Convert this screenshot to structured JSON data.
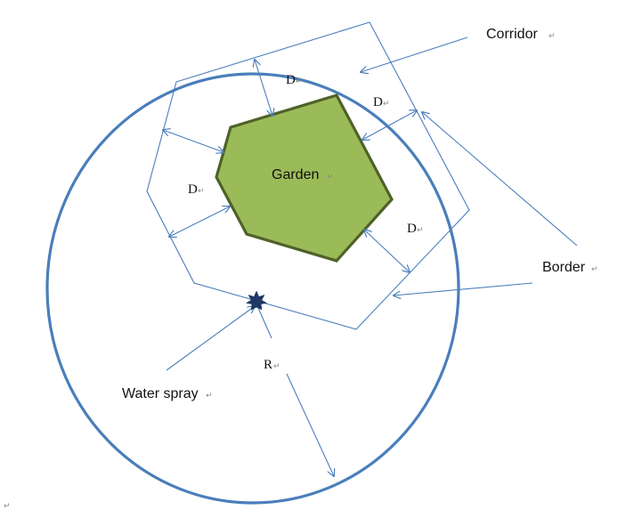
{
  "labels": {
    "corridor": "Corridor",
    "garden": "Garden",
    "border": "Border",
    "water_spray": "Water spray",
    "radius": "R",
    "distance_top": "D",
    "distance_upper_right": "D",
    "distance_left": "D",
    "distance_lower_right": "D"
  },
  "colors": {
    "circle_stroke": "#4A7EBB",
    "garden_fill": "#9BBB59",
    "garden_stroke": "#4F6228",
    "corridor_lines": "#4A7EBB",
    "spray_star": "#1F3864"
  },
  "icons": {
    "water_spray": "star-icon",
    "paragraph_mark": "return-mark-icon"
  }
}
